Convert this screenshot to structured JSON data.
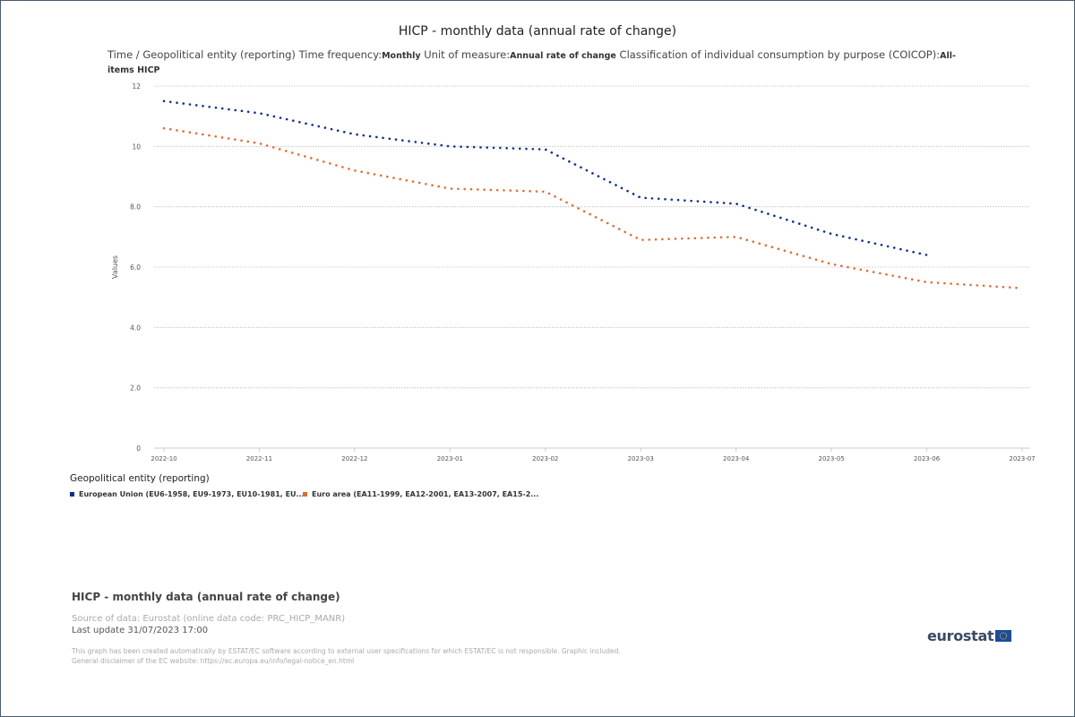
{
  "title": "HICP - monthly data (annual rate of change)",
  "subtitle": {
    "prefix": "Time / Geopolitical entity (reporting)  Time frequency:",
    "frequency": "Monthly",
    "unit_label": "  Unit of measure:",
    "unit": "Annual rate of change",
    "coicop_label": "  Classification of individual consumption by purpose (COICOP):",
    "coicop": "All-items HICP"
  },
  "legend": {
    "title": "Geopolitical entity (reporting)",
    "items": [
      {
        "label": "European Union (EU6-1958, EU9-1973, EU10-1981, EU...",
        "color": "#0e2f8a"
      },
      {
        "label": "Euro area (EA11-1999, EA12-2001, EA13-2007, EA15-2...",
        "color": "#e06b32"
      }
    ]
  },
  "footer": {
    "title": "HICP - monthly data (annual rate of change)",
    "source": "Source of data: Eurostat (online data code: PRC_HICP_MANR)",
    "last_update": "Last update 31/07/2023 17:00",
    "disclaimer1": "This graph has been created automatically by ESTAT/EC software according to external user specifications for which ESTAT/EC is not responsible. Graphic included.",
    "disclaimer2": "General disclaimer of the EC website: https://ec.europa.eu/info/legal-notice_en.html",
    "logo": "eurostat"
  },
  "chart_data": {
    "type": "line",
    "ylabel": "Values",
    "ylim": [
      0,
      12
    ],
    "yticks": [
      "0",
      "2.0",
      "4.0",
      "6.0",
      "8.0",
      "10",
      "12"
    ],
    "categories": [
      "2022-10",
      "2022-11",
      "2022-12",
      "2023-01",
      "2023-02",
      "2023-03",
      "2023-04",
      "2023-05",
      "2023-06",
      "2023-07"
    ],
    "series": [
      {
        "name": "European Union (EU6-1958, EU9-1973, EU10-1981, EU...",
        "color": "#0e2f8a",
        "values": [
          11.5,
          11.1,
          10.4,
          10.0,
          9.9,
          8.3,
          8.1,
          7.1,
          6.4,
          null
        ]
      },
      {
        "name": "Euro area (EA11-1999, EA12-2001, EA13-2007, EA15-2...",
        "color": "#e06b32",
        "values": [
          10.6,
          10.1,
          9.2,
          8.6,
          8.5,
          6.9,
          7.0,
          6.1,
          5.5,
          5.3
        ]
      }
    ],
    "grid": true,
    "legend_position": "bottom-left"
  }
}
